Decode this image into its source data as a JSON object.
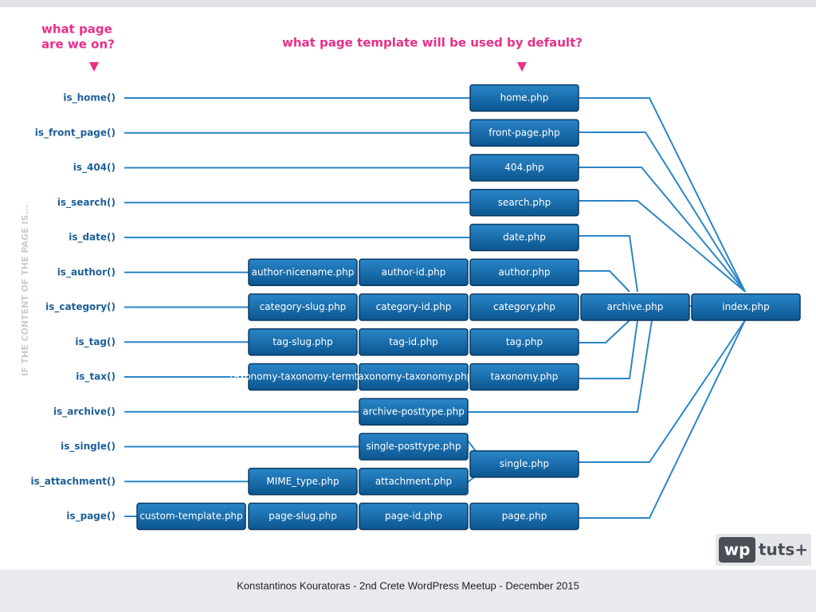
{
  "header": {
    "left": [
      "what page",
      "are we on?"
    ],
    "right": "what page template will be used by default?"
  },
  "side_label": "IF THE CONTENT OF THE PAGE IS...",
  "conditions": [
    "is_home()",
    "is_front_page()",
    "is_404()",
    "is_search()",
    "is_date()",
    "is_author()",
    "is_category()",
    "is_tag()",
    "is_tax()",
    "is_archive()",
    "is_single()",
    "is_attachment()",
    "is_page()"
  ],
  "nodes": [
    "home.php",
    "front-page.php",
    "404.php",
    "search.php",
    "date.php",
    "author-nicename.php",
    "author-id.php",
    "author.php",
    "category-slug.php",
    "category-id.php",
    "category.php",
    "archive.php",
    "index.php",
    "tag-slug.php",
    "tag-id.php",
    "tag.php",
    "taxonomy-taxonomy-term.php",
    "taxonomy-taxonomy.php",
    "taxonomy.php",
    "archive-posttype.php",
    "single-posttype.php",
    "single.php",
    "MIME_type.php",
    "attachment.php",
    "custom-template.php",
    "page-slug.php",
    "page-id.php",
    "page.php"
  ],
  "logo": {
    "left": "wp",
    "right": "tuts+"
  },
  "footer": "Konstantinos Kouratoras - 2nd Crete WordPress Meetup - December 2015"
}
